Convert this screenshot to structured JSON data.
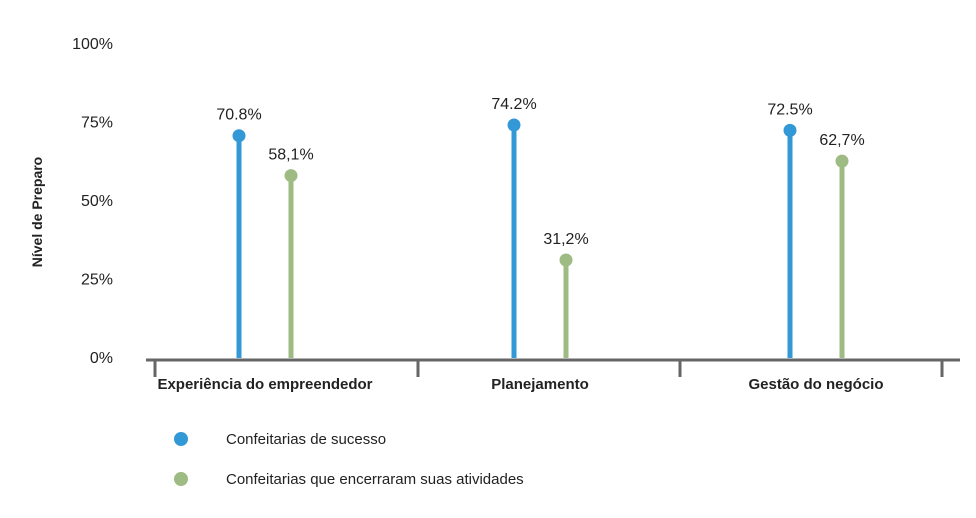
{
  "chart_data": {
    "type": "lollipop",
    "categories": [
      "Experiência do empreendedor",
      "Planejamento",
      "Gestão do negócio"
    ],
    "series": [
      {
        "name": "Confeitarias de sucesso",
        "values": [
          70.8,
          74.2,
          72.5
        ],
        "value_labels": [
          "70.8%",
          "74.2%",
          "72.5%"
        ],
        "color": "#3399d6"
      },
      {
        "name": "Confeitarias que encerraram suas atividades",
        "values": [
          58.1,
          31.2,
          62.7
        ],
        "value_labels": [
          "58,1%",
          "31,2%",
          "62,7%"
        ],
        "color": "#9dbb82"
      }
    ],
    "ylabel": "Nível de Preparo",
    "xlabel": "",
    "title": "",
    "ylim": [
      0,
      100
    ],
    "yticks": [
      0,
      25,
      50,
      75,
      100
    ],
    "ytick_labels": [
      "0%",
      "25%",
      "50%",
      "75%",
      "100%"
    ],
    "grid": false,
    "legend_position": "bottom-left",
    "axis_color": "#666666"
  }
}
